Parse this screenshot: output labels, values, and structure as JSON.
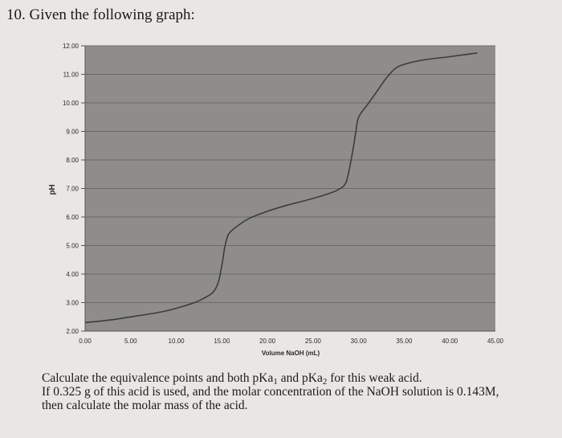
{
  "question": {
    "title": "10. Given the following graph:",
    "line1_a": "Calculate the equivalence points and both pKa",
    "sub1": "1",
    "line1_b": " and pKa",
    "sub2": "2",
    "line1_c": " for this weak acid.",
    "line2": "If 0.325 g of this acid is used, and the molar concentration of the NaOH solution is 0.143M,",
    "line3": "then calculate the molar mass of the acid."
  },
  "chart_data": {
    "type": "line",
    "title": "",
    "xlabel": "Volume NaOH (mL)",
    "ylabel": "pH",
    "xlim": [
      0,
      45
    ],
    "ylim": [
      2,
      12
    ],
    "grid": true,
    "x_ticks": [
      "0.00",
      "5.00",
      "10.00",
      "15.00",
      "20.00",
      "25.00",
      "30.00",
      "35.00",
      "40.00",
      "45.00"
    ],
    "y_ticks": [
      "2.00",
      "3.00",
      "4.00",
      "5.00",
      "6.00",
      "7.00",
      "8.00",
      "9.00",
      "10.00",
      "11.00",
      "12.00"
    ],
    "colors": {
      "plot_bg": "#8e8d8b",
      "grid": "#6b6a68",
      "line": "#3c3c3c",
      "axis_text": "#2a2a2a"
    },
    "series": [
      {
        "x": [
          0,
          3,
          5,
          8,
          10,
          12,
          13,
          14,
          14.6,
          15,
          15.3,
          15.6,
          16,
          17,
          18,
          20,
          22,
          25,
          27,
          28,
          28.6,
          29,
          29.4,
          29.7,
          30,
          31,
          32,
          33,
          34,
          35,
          37,
          40,
          43
        ],
        "y": [
          2.3,
          2.4,
          2.5,
          2.65,
          2.8,
          3.0,
          3.15,
          3.35,
          3.7,
          4.3,
          4.9,
          5.3,
          5.5,
          5.75,
          5.95,
          6.2,
          6.4,
          6.65,
          6.85,
          7.0,
          7.2,
          7.7,
          8.4,
          9.0,
          9.5,
          9.95,
          10.4,
          10.85,
          11.2,
          11.35,
          11.5,
          11.62,
          11.75
        ]
      }
    ]
  }
}
